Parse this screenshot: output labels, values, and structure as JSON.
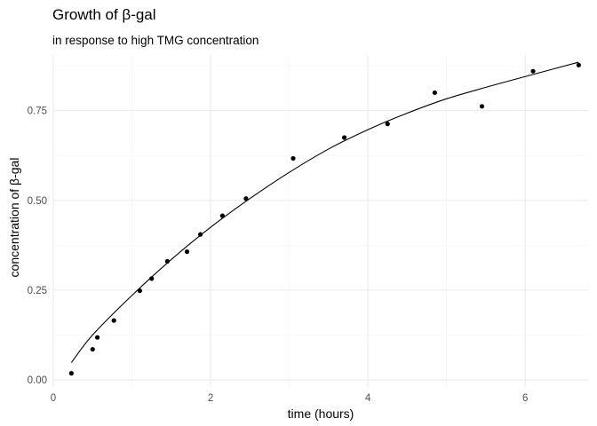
{
  "chart_data": {
    "type": "scatter",
    "title": "Growth of  β-gal",
    "subtitle": "in response to high TMG concentration",
    "xlabel": "time (hours)",
    "ylabel": "concentration of  β-gal",
    "xlim": [
      0.0,
      6.8
    ],
    "ylim": [
      -0.02,
      0.905
    ],
    "x_ticks": [
      0,
      2,
      4,
      6
    ],
    "x_tick_labels": [
      "0",
      "2",
      "4",
      "6"
    ],
    "y_ticks": [
      0.0,
      0.25,
      0.5,
      0.75
    ],
    "y_tick_labels": [
      "0.00",
      "0.25",
      "0.50",
      "0.75"
    ],
    "grid": true,
    "legend": "none",
    "colors": {
      "points": "#000000",
      "fit_line": "#000000",
      "grid": "#ebebeb",
      "tick_text": "#4d4d4d"
    },
    "series": [
      {
        "type": "scatter",
        "x": [
          0.23,
          0.5,
          0.56,
          0.77,
          1.1,
          1.25,
          1.45,
          1.7,
          1.87,
          2.15,
          2.45,
          3.05,
          3.7,
          4.25,
          4.85,
          5.45,
          6.1,
          6.68
        ],
        "y": [
          0.018,
          0.085,
          0.118,
          0.165,
          0.248,
          0.282,
          0.33,
          0.357,
          0.405,
          0.457,
          0.505,
          0.617,
          0.675,
          0.713,
          0.8,
          0.762,
          0.86,
          0.877
        ]
      },
      {
        "type": "line",
        "x": [
          0.23,
          0.5,
          1.0,
          1.5,
          2.0,
          2.5,
          3.0,
          3.5,
          4.0,
          4.5,
          5.0,
          5.5,
          6.0,
          6.68
        ],
        "y": [
          0.048,
          0.125,
          0.235,
          0.335,
          0.425,
          0.505,
          0.578,
          0.643,
          0.697,
          0.743,
          0.783,
          0.815,
          0.845,
          0.885
        ]
      }
    ]
  }
}
